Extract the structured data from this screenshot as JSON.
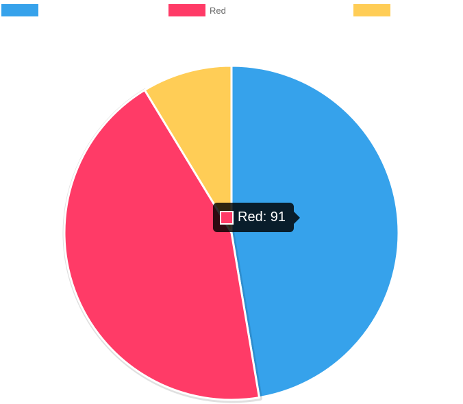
{
  "chart_data": {
    "type": "pie",
    "title": "",
    "labels": [
      "",
      "Red",
      ""
    ],
    "values": [
      98,
      91,
      18
    ],
    "colors": [
      "#36A2EB",
      "#FF3B67",
      "#FFCD56"
    ],
    "legend_position": "top",
    "tooltip": {
      "label": "Red",
      "value": 91,
      "text": "Red: 91",
      "color": "#FF3B67"
    }
  }
}
